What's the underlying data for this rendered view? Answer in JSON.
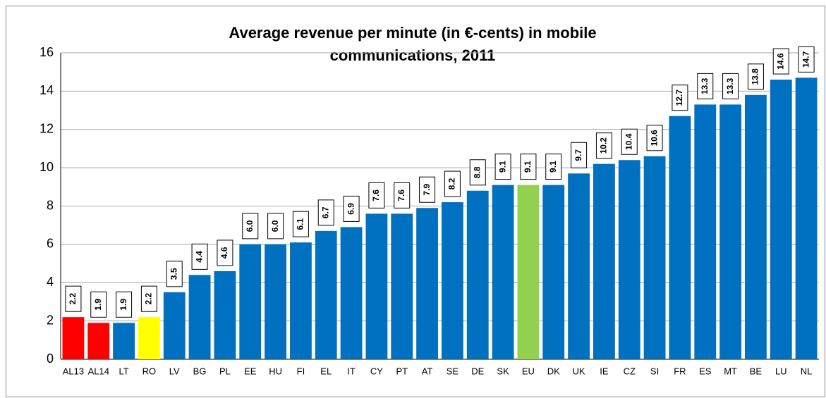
{
  "chart_data": {
    "type": "bar",
    "title": [
      "Average revenue per minute (in €-cents) in mobile",
      "communications, 2011"
    ],
    "categories": [
      "AL13",
      "AL14",
      "LT",
      "RO",
      "LV",
      "BG",
      "PL",
      "EE",
      "HU",
      "FI",
      "EL",
      "IT",
      "CY",
      "PT",
      "AT",
      "SE",
      "DE",
      "SK",
      "EU",
      "DK",
      "UK",
      "IE",
      "CZ",
      "SI",
      "FR",
      "ES",
      "MT",
      "BE",
      "LU",
      "NL"
    ],
    "values": [
      2.2,
      1.9,
      1.9,
      2.2,
      3.5,
      4.4,
      4.6,
      6.0,
      6.0,
      6.1,
      6.7,
      6.9,
      7.6,
      7.6,
      7.9,
      8.2,
      8.8,
      9.1,
      9.1,
      9.1,
      9.7,
      10.2,
      10.4,
      10.6,
      12.7,
      13.3,
      13.3,
      13.8,
      14.6,
      14.7
    ],
    "value_labels": [
      "2.2",
      "1.9",
      "1.9",
      "2.2",
      "3.5",
      "4.4",
      "4.6",
      "6.0",
      "6.0",
      "6.1",
      "6.7",
      "6.9",
      "7.6",
      "7.6",
      "7.9",
      "8.2",
      "8.8",
      "9.1",
      "9.1",
      "9.1",
      "9.7",
      "10.2",
      "10.4",
      "10.6",
      "12.7",
      "13.3",
      "13.3",
      "13.8",
      "14.6",
      "14.7"
    ],
    "colors": [
      "#ff0000",
      "#ff0000",
      "#0070c0",
      "#ffff00",
      "#0070c0",
      "#0070c0",
      "#0070c0",
      "#0070c0",
      "#0070c0",
      "#0070c0",
      "#0070c0",
      "#0070c0",
      "#0070c0",
      "#0070c0",
      "#0070c0",
      "#0070c0",
      "#0070c0",
      "#0070c0",
      "#92d050",
      "#0070c0",
      "#0070c0",
      "#0070c0",
      "#0070c0",
      "#0070c0",
      "#0070c0",
      "#0070c0",
      "#0070c0",
      "#0070c0",
      "#0070c0",
      "#0070c0"
    ],
    "ylim": [
      0,
      16
    ],
    "yticks": [
      0,
      2,
      4,
      6,
      8,
      10,
      12,
      14,
      16
    ],
    "grid": true
  }
}
